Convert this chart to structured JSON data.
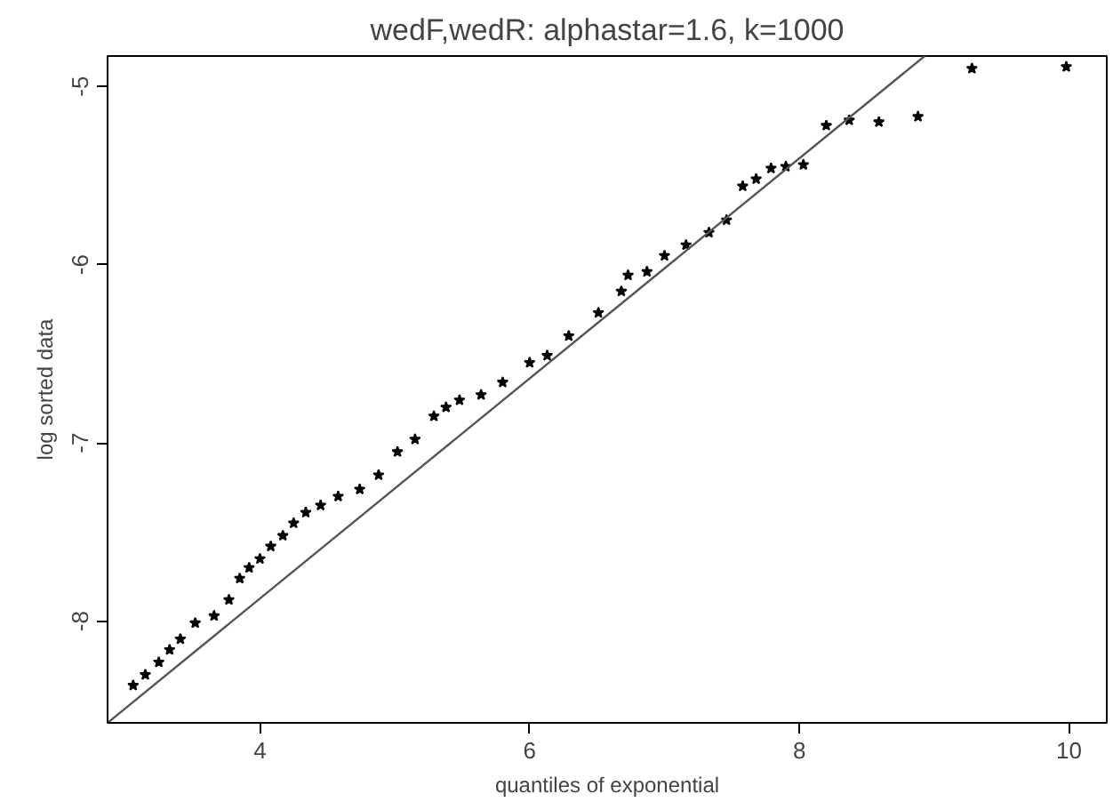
{
  "chart_data": {
    "type": "scatter",
    "title": "wedF,wedR: alphastar=1.6, k=1000",
    "xlabel": "quantiles of exponential",
    "ylabel": "log sorted data",
    "xlim": [
      2.87,
      10.28
    ],
    "ylim": [
      -8.57,
      -4.83
    ],
    "xticks": [
      4,
      6,
      8,
      10
    ],
    "yticks": [
      -8,
      -7,
      -6,
      -5
    ],
    "grid": false,
    "marker": "star",
    "series": [
      {
        "color": "#000000",
        "x": [
          3.06,
          3.15,
          3.25,
          3.33,
          3.41,
          3.52,
          3.66,
          3.77,
          3.85,
          3.92,
          4.0,
          4.08,
          4.17,
          4.25,
          4.34,
          4.45,
          4.58,
          4.74,
          4.88,
          5.02,
          5.15,
          5.29,
          5.38,
          5.48,
          5.64,
          5.8,
          6.0,
          6.13,
          6.29,
          6.51,
          6.68,
          6.73,
          6.87,
          7.0,
          7.16,
          7.33,
          7.46,
          7.58,
          7.68,
          7.79,
          7.9,
          8.03,
          8.2,
          8.37,
          8.59,
          8.88,
          9.28,
          9.98
        ],
        "values": [
          -8.36,
          -8.3,
          -8.23,
          -8.16,
          -8.1,
          -8.01,
          -7.97,
          -7.88,
          -7.76,
          -7.7,
          -7.65,
          -7.58,
          -7.52,
          -7.45,
          -7.39,
          -7.35,
          -7.3,
          -7.26,
          -7.18,
          -7.05,
          -6.98,
          -6.85,
          -6.8,
          -6.76,
          -6.73,
          -6.66,
          -6.55,
          -6.51,
          -6.4,
          -6.27,
          -6.15,
          -6.06,
          -6.04,
          -5.95,
          -5.89,
          -5.82,
          -5.75,
          -5.56,
          -5.52,
          -5.46,
          -5.45,
          -5.44,
          -5.22,
          -5.19,
          -5.2,
          -5.17,
          -4.9,
          -4.89
        ]
      },
      {
        "type": "line",
        "marker": "none",
        "color": "#555555",
        "x": [
          2.87,
          8.93
        ],
        "values": [
          -8.57,
          -4.83
        ]
      }
    ]
  }
}
